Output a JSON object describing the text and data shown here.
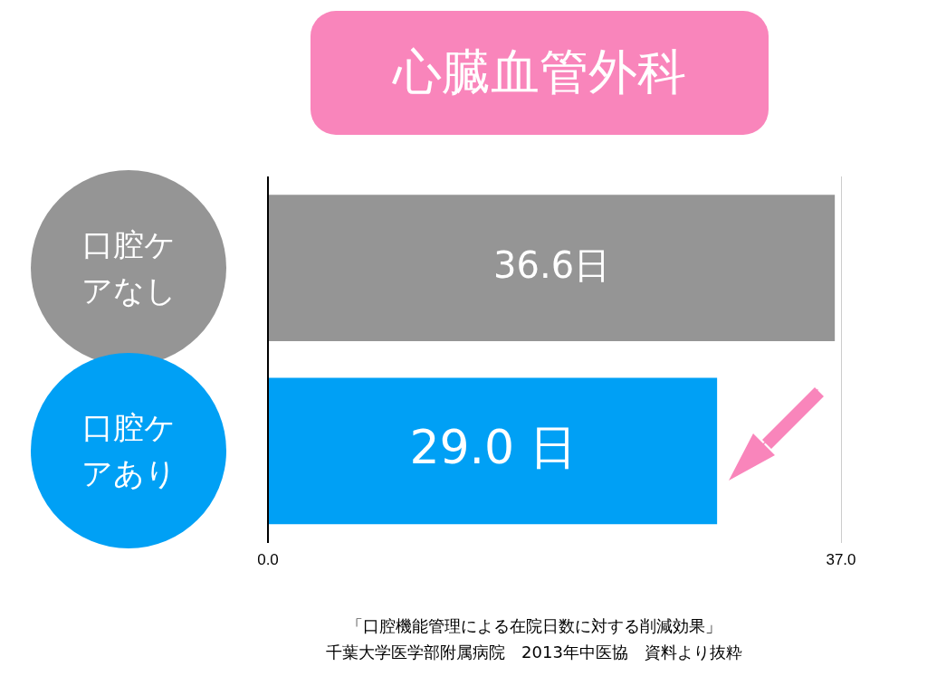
{
  "chart_data": {
    "type": "bar",
    "orientation": "horizontal",
    "title": "心臓血管外科",
    "categories": [
      "口腔ケアなし",
      "口腔ケアあり"
    ],
    "values": [
      36.6,
      29.0
    ],
    "colors": [
      "#959595",
      "#00a0f5"
    ],
    "value_labels": [
      "36.6日",
      "29.0 日"
    ],
    "xlim": [
      0,
      37
    ],
    "xticks": [
      {
        "value": 0,
        "label": "0.0"
      },
      {
        "value": 37,
        "label": "37.0"
      }
    ],
    "grid": "x",
    "legend": false,
    "annotations": [
      "「口腔機能管理による在院日数に対する削減効果」",
      "千葉大学医学部附属病院　2013年中医協　資料より抜粋"
    ]
  }
}
